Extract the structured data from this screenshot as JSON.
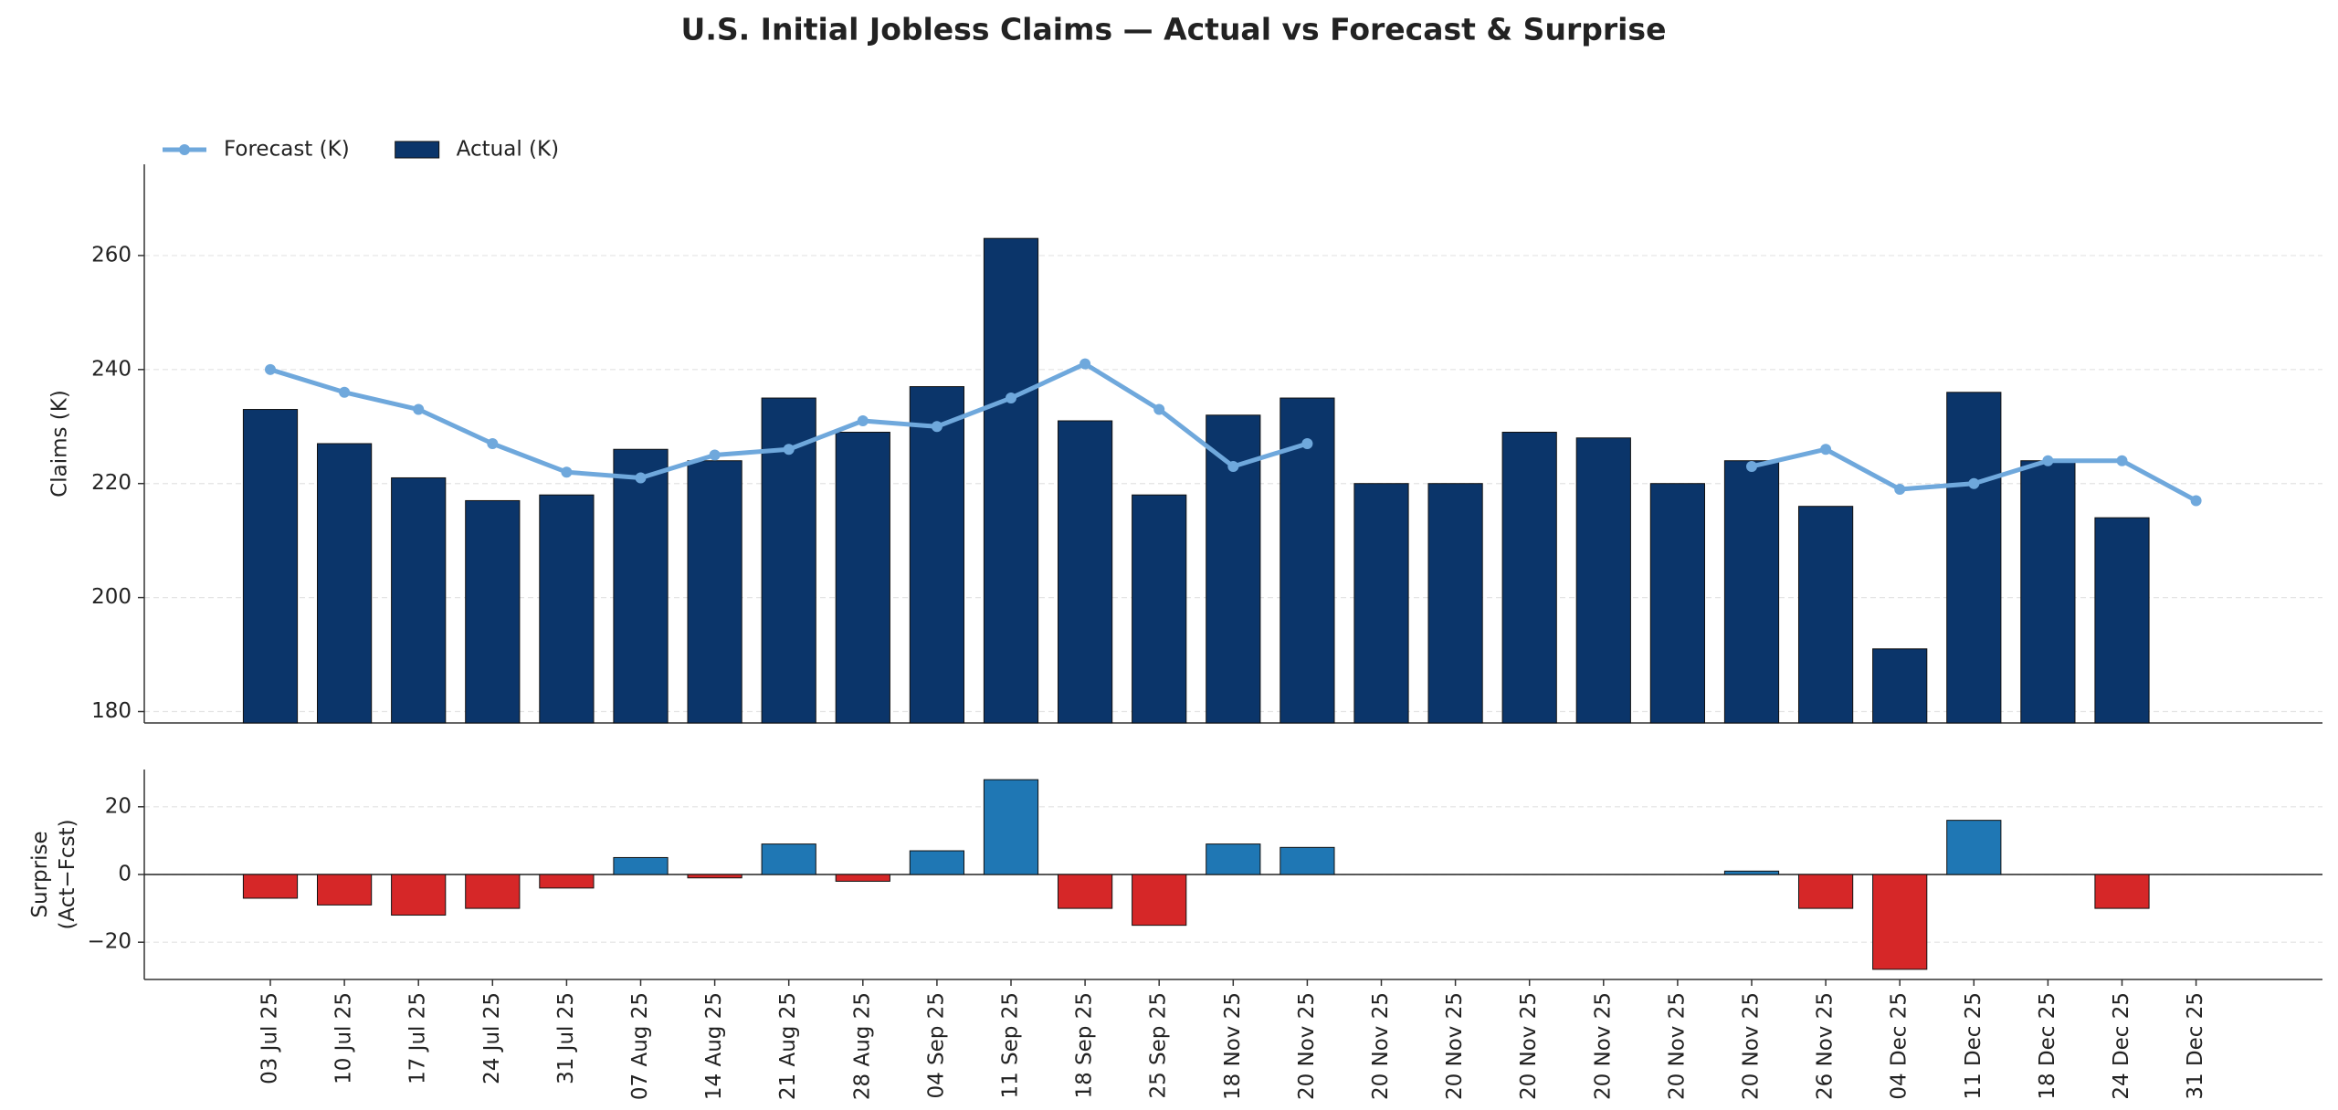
{
  "chart_data": [
    {
      "type": "bar",
      "title": "U.S. Initial Jobless Claims — Actual vs Forecast & Surprise",
      "ylabel": "Claims (K)",
      "legend": "upper left",
      "grid": true,
      "ylim": [
        178,
        276
      ],
      "yticks": [
        180,
        200,
        220,
        240,
        260
      ],
      "series": [
        {
          "name": "Forecast (K)",
          "type": "line",
          "color": "#6fa8dc",
          "values": [
            240,
            236,
            233,
            227,
            222,
            221,
            225,
            226,
            231,
            230,
            235,
            241,
            233,
            223,
            227,
            null,
            null,
            null,
            null,
            null,
            223,
            226,
            219,
            220,
            224,
            224,
            217
          ]
        },
        {
          "name": "Actual (K)",
          "type": "bar",
          "color": "#0b356a",
          "values": [
            233,
            227,
            221,
            217,
            218,
            226,
            224,
            235,
            229,
            237,
            263,
            231,
            218,
            232,
            235,
            220,
            220,
            229,
            228,
            220,
            224,
            216,
            191,
            236,
            224,
            214,
            null
          ]
        }
      ]
    },
    {
      "type": "bar",
      "ylabel": [
        "Surprise",
        "(Act−Fcst)"
      ],
      "grid": true,
      "zero_line": true,
      "ylim": [
        -31,
        31
      ],
      "yticks": [
        {
          "value": -20,
          "label": "−20"
        },
        0,
        20
      ],
      "positive_color": "#1f77b4",
      "negative_color": "#d62728",
      "categories": [
        "03 Jul 25",
        "10 Jul 25",
        "17 Jul 25",
        "24 Jul 25",
        "31 Jul 25",
        "07 Aug 25",
        "14 Aug 25",
        "21 Aug 25",
        "28 Aug 25",
        "04 Sep 25",
        "11 Sep 25",
        "18 Sep 25",
        "25 Sep 25",
        "18 Nov 25",
        "20 Nov 25",
        "20 Nov 25",
        "20 Nov 25",
        "20 Nov 25",
        "20 Nov 25",
        "20 Nov 25",
        "20 Nov 25",
        "26 Nov 25",
        "04 Dec 25",
        "11 Dec 25",
        "18 Dec 25",
        "24 Dec 25",
        "31 Dec 25"
      ],
      "values": [
        -7,
        -9,
        -12,
        -10,
        -4,
        5,
        -1,
        9,
        -2,
        7,
        28,
        -10,
        -15,
        9,
        8,
        null,
        null,
        null,
        null,
        null,
        1,
        -10,
        -28,
        16,
        0,
        -10,
        null
      ]
    }
  ]
}
